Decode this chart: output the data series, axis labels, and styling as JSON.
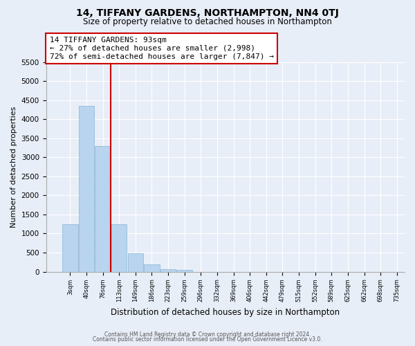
{
  "title": "14, TIFFANY GARDENS, NORTHAMPTON, NN4 0TJ",
  "subtitle": "Size of property relative to detached houses in Northampton",
  "xlabel": "Distribution of detached houses by size in Northampton",
  "ylabel": "Number of detached properties",
  "bar_values": [
    1250,
    4350,
    3300,
    1250,
    480,
    200,
    70,
    50,
    0,
    0,
    0,
    0,
    0,
    0,
    0,
    0,
    0,
    0,
    0,
    0
  ],
  "bin_labels": [
    "3sqm",
    "40sqm",
    "76sqm",
    "113sqm",
    "149sqm",
    "186sqm",
    "223sqm",
    "259sqm",
    "296sqm",
    "332sqm",
    "369sqm",
    "406sqm",
    "442sqm",
    "479sqm",
    "515sqm",
    "552sqm",
    "589sqm",
    "625sqm",
    "662sqm",
    "698sqm",
    "735sqm"
  ],
  "bar_color": "#b8d4ee",
  "bar_edge_color": "#8ab4d4",
  "vline_x_bar": 2,
  "vline_color": "#cc0000",
  "annotation_title": "14 TIFFANY GARDENS: 93sqm",
  "annotation_line1": "← 27% of detached houses are smaller (2,998)",
  "annotation_line2": "72% of semi-detached houses are larger (7,847) →",
  "annotation_box_color": "#ffffff",
  "annotation_box_edge": "#cc0000",
  "ylim": [
    0,
    5500
  ],
  "yticks": [
    0,
    500,
    1000,
    1500,
    2000,
    2500,
    3000,
    3500,
    4000,
    4500,
    5000,
    5500
  ],
  "footer_line1": "Contains HM Land Registry data © Crown copyright and database right 2024.",
  "footer_line2": "Contains public sector information licensed under the Open Government Licence v3.0.",
  "bg_color": "#e8eef8",
  "plot_bg_color": "#e8eef8",
  "grid_color": "#ffffff",
  "title_fontsize": 10,
  "subtitle_fontsize": 8.5
}
